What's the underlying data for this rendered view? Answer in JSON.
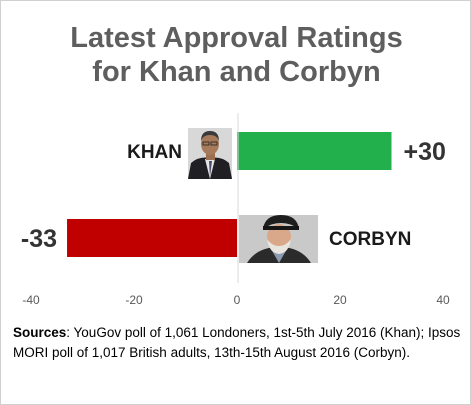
{
  "title": {
    "line1": "Latest Approval Ratings",
    "line2": "for Khan and Corbyn"
  },
  "chart_data": {
    "type": "bar",
    "orientation": "horizontal",
    "categories": [
      "KHAN",
      "CORBYN"
    ],
    "values": [
      30,
      -33
    ],
    "value_labels": [
      "+30",
      "-33"
    ],
    "colors": [
      "#22b04c",
      "#c00000"
    ],
    "xlim": [
      -40,
      40
    ],
    "xticks": [
      -40,
      -20,
      0,
      20,
      40
    ],
    "xtick_labels": [
      "-40",
      "-20",
      "0",
      "20",
      "40"
    ],
    "grid": false,
    "legend": "none"
  },
  "photos": {
    "khan": "khan-portrait-icon",
    "corbyn": "corbyn-portrait-icon"
  },
  "sources": {
    "label": "Sources",
    "text": ": YouGov poll of 1,061 Londoners, 1st-5th July 2016 (Khan); Ipsos MORI poll of 1,017 British adults, 13th-15th August 2016 (Corbyn)."
  }
}
